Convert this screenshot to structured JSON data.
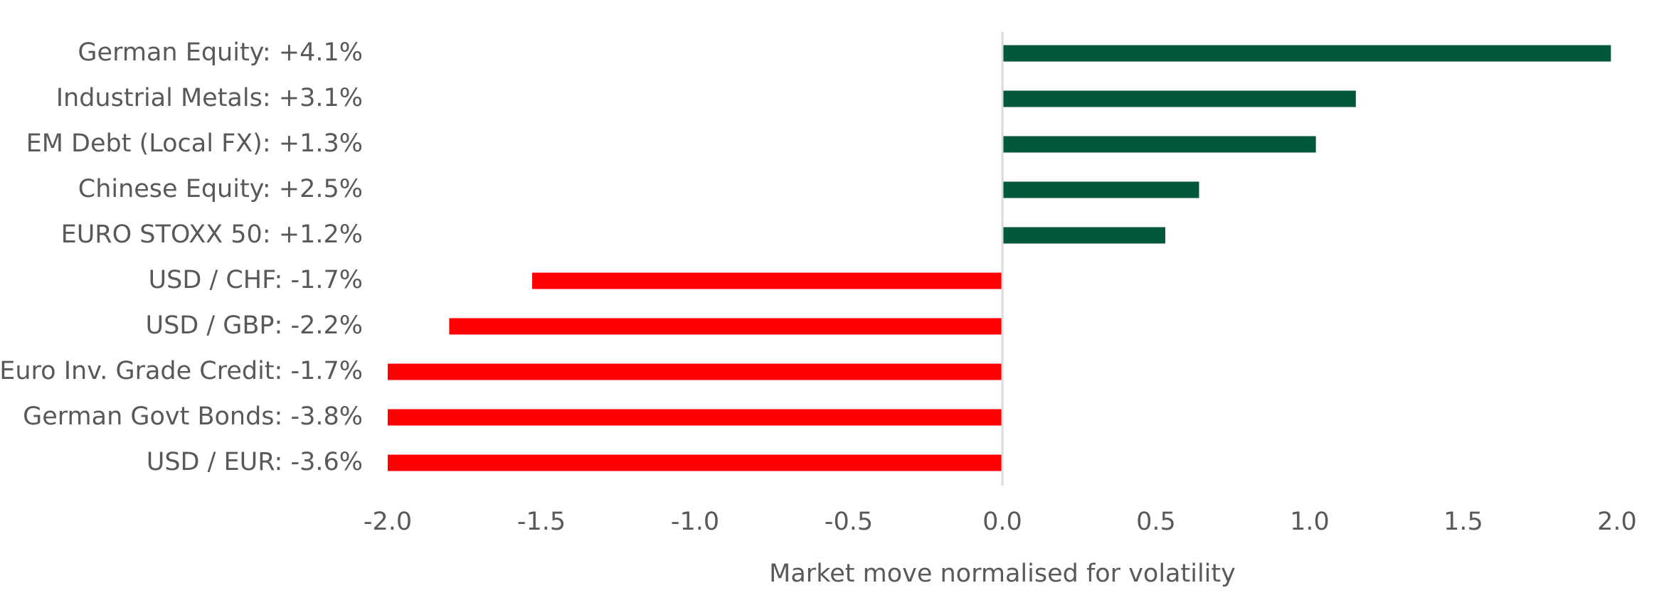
{
  "chart_data": {
    "type": "bar",
    "orientation": "horizontal",
    "categories": [
      "German Equity: +4.1%",
      "Industrial Metals: +3.1%",
      "EM Debt (Local FX): +1.3%",
      "Chinese Equity: +2.5%",
      "EURO STOXX 50: +1.2%",
      "USD / CHF: -1.7%",
      "USD / GBP: -2.2%",
      "Euro Inv. Grade Credit: -1.7%",
      "German Govt Bonds: -3.8%",
      "USD / EUR: -3.6%"
    ],
    "values": [
      1.98,
      1.15,
      1.02,
      0.64,
      0.53,
      -1.53,
      -1.8,
      -2.0,
      -2.0,
      -2.0
    ],
    "title": "",
    "xlabel": "Market move normalised for volatility",
    "ylabel": "",
    "xlim": [
      -2.0,
      2.0
    ],
    "xticks": [
      -2.0,
      -1.5,
      -1.0,
      -0.5,
      0.0,
      0.5,
      1.0,
      1.5,
      2.0
    ],
    "xtick_labels": [
      "-2.0",
      "-1.5",
      "-1.0",
      "-0.5",
      "0.0",
      "0.5",
      "1.0",
      "1.5",
      "2.0"
    ],
    "grid": false,
    "legend": "none",
    "colors": {
      "positive": "#00573A",
      "negative": "#FF0000",
      "zero_line": "#D9D9D9",
      "text": "#595959"
    }
  }
}
